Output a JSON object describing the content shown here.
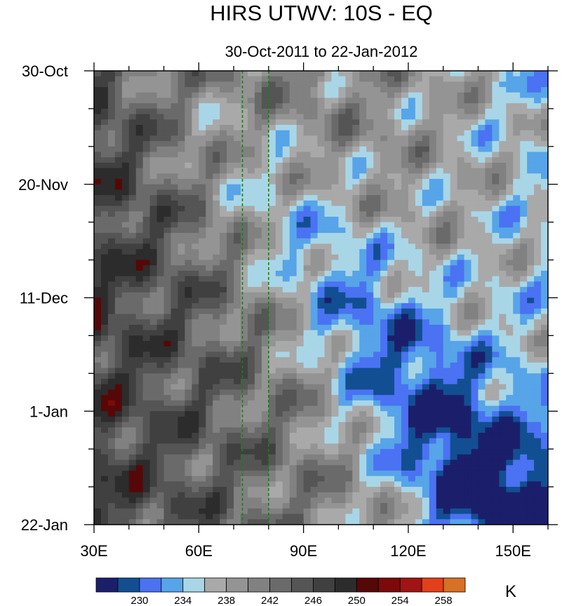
{
  "chart_data": {
    "type": "heatmap",
    "title": "HIRS UTWV: 10S - EQ",
    "subtitle": "30-Oct-2011 to 22-Jan-2012",
    "x_axis": {
      "range": [
        30,
        160
      ],
      "ticks": [
        30,
        60,
        90,
        120,
        150
      ],
      "tick_labels": [
        "30E",
        "60E",
        "90E",
        "120E",
        "150E"
      ]
    },
    "y_axis": {
      "range": [
        "2011-10-30",
        "2012-01-22"
      ],
      "ticks": [
        "2011-10-30",
        "2011-11-20",
        "2011-12-11",
        "2012-01-01",
        "2012-01-22"
      ],
      "tick_labels": [
        "30-Oct",
        "20-Nov",
        "11-Dec",
        "1-Jan",
        "22-Jan"
      ],
      "direction": "downward"
    },
    "reference_lines": [
      {
        "axis": "x",
        "value": 72.5,
        "color": "#1e7b1e",
        "style": "dashed"
      },
      {
        "axis": "x",
        "value": 80,
        "color": "#1e7b1e",
        "style": "dashed"
      }
    ],
    "colorbar": {
      "unit": "K",
      "label_values": [
        "230",
        "234",
        "238",
        "242",
        "246",
        "250",
        "254",
        "258"
      ],
      "levels": [
        228,
        230,
        232,
        234,
        236,
        238,
        240,
        242,
        244,
        246,
        248,
        250,
        252,
        254,
        256,
        258
      ],
      "colors": [
        "#1b1f6b",
        "#124f92",
        "#4a72f2",
        "#57a4e8",
        "#a9d6e6",
        "#a9a9a9",
        "#949494",
        "#818181",
        "#6a6a6a",
        "#555555",
        "#404040",
        "#2c2c2c",
        "#560808",
        "#7c0a0a",
        "#a01414",
        "#e2401a",
        "#d67126"
      ]
    },
    "grid": false,
    "legend": "colorbar-bottom"
  }
}
